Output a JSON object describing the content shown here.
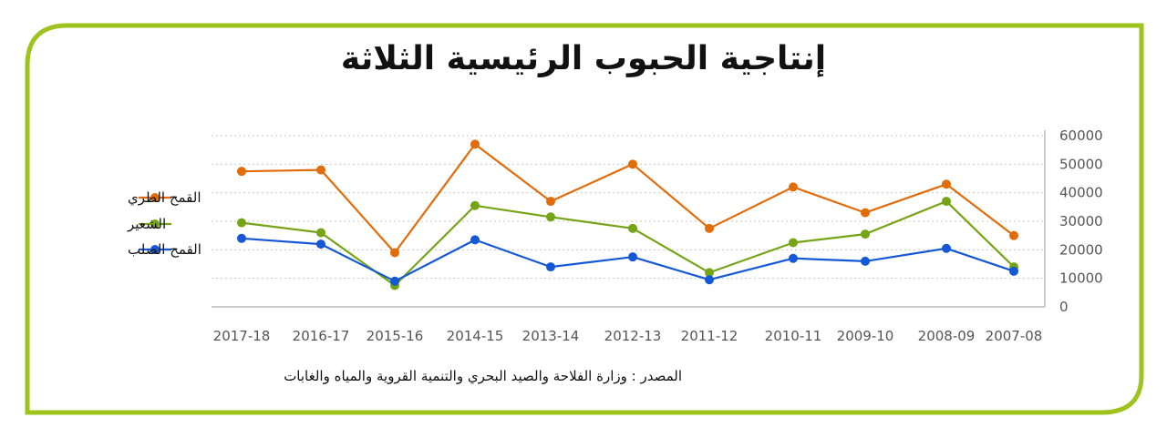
{
  "page": {
    "title": "إنتاجية الحبوب الرئيسية الثلاثة",
    "source": "المصدر : وزارة الفلاحة والصيد البحري والتنمية القروية والمياه والغابات"
  },
  "colors": {
    "frame": "#9dc31c",
    "grid": "#c8c8c8",
    "axis": "#bbbbbb"
  },
  "chart_data": {
    "type": "line",
    "categories": [
      "2017-18",
      "2016-17",
      "2015-16",
      "2014-15",
      "2013-14",
      "2012-13",
      "2011-12",
      "2010-11",
      "2009-10",
      "2008-09",
      "2007-08"
    ],
    "ylim": [
      0,
      60000
    ],
    "yticks": [
      0,
      10000,
      20000,
      30000,
      40000,
      50000,
      60000
    ],
    "ytick_labels": [
      "0",
      "10000",
      "20000",
      "30000",
      "40000",
      "50000",
      "60000"
    ],
    "grid": true,
    "legend_position": "left",
    "series": [
      {
        "name": "القمح الطري",
        "color": "#e36c0a",
        "values": [
          47500,
          48000,
          19000,
          57000,
          37000,
          50000,
          27500,
          42000,
          33000,
          43000,
          25000
        ]
      },
      {
        "name": "الشعير",
        "color": "#76a417",
        "values": [
          29500,
          26000,
          7500,
          35500,
          31500,
          27500,
          12000,
          22500,
          25500,
          37000,
          14000
        ]
      },
      {
        "name": "القمح الصلب",
        "color": "#1558d6",
        "values": [
          24000,
          22000,
          9000,
          23500,
          14000,
          17500,
          9500,
          17000,
          16000,
          20500,
          12500
        ]
      }
    ]
  }
}
